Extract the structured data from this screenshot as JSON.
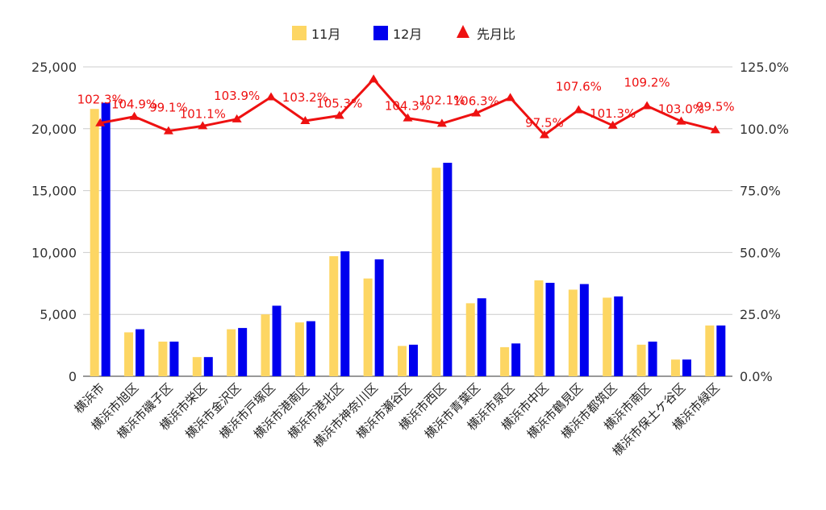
{
  "chart_data": {
    "type": "bar",
    "legend_position": "top",
    "grid": true,
    "categories": [
      "横浜市",
      "横浜市旭区",
      "横浜市磯子区",
      "横浜市栄区",
      "横浜市金沢区",
      "横浜市戸塚区",
      "横浜市港南区",
      "横浜市港北区",
      "横浜市神奈川区",
      "横浜市瀬谷区",
      "横浜市西区",
      "横浜市青葉区",
      "横浜市泉区",
      "横浜市中区",
      "横浜市鶴見区",
      "横浜市都筑区",
      "横浜市南区",
      "横浜市保土ケ谷区",
      "横浜市緑区"
    ],
    "series": [
      {
        "name": "11月",
        "color": "#fdd663",
        "axis": "left",
        "values": [
          21600,
          3550,
          2800,
          1550,
          3800,
          5000,
          4350,
          9700,
          7900,
          2450,
          16850,
          5900,
          2350,
          7750,
          7000,
          6350,
          2550,
          1350,
          4100
        ]
      },
      {
        "name": "12月",
        "color": "#0000ee",
        "axis": "left",
        "values": [
          22100,
          3800,
          2800,
          1550,
          3900,
          5700,
          4450,
          10100,
          9450,
          2550,
          17250,
          6300,
          2650,
          7550,
          7450,
          6450,
          2800,
          1350,
          4100
        ]
      },
      {
        "name": "先月比",
        "color": "#ee1111",
        "axis": "right",
        "type": "line",
        "values": [
          102.3,
          104.9,
          99.1,
          101.1,
          103.9,
          112.8,
          103.2,
          105.3,
          120.0,
          104.3,
          102.1,
          106.3,
          112.5,
          97.5,
          107.6,
          101.3,
          109.2,
          103.0,
          99.5
        ],
        "labels": [
          "102.3%",
          "104.9%",
          "99.1%",
          "101.1%",
          "103.9%",
          "",
          "103.2%",
          "105.3%",
          "",
          "104.3%",
          "102.1%",
          "106.3%",
          "",
          "97.5%",
          "107.6%",
          "101.3%",
          "109.2%",
          "103.0%",
          "99.5%"
        ]
      }
    ],
    "y_left": {
      "min": 0,
      "max": 25000,
      "ticks": [
        "0",
        "5,000",
        "10,000",
        "15,000",
        "20,000",
        "25,000"
      ]
    },
    "y_right": {
      "min": 0,
      "max": 125,
      "ticks": [
        "0.0%",
        "25.0%",
        "50.0%",
        "75.0%",
        "100.0%",
        "125.0%"
      ]
    }
  }
}
